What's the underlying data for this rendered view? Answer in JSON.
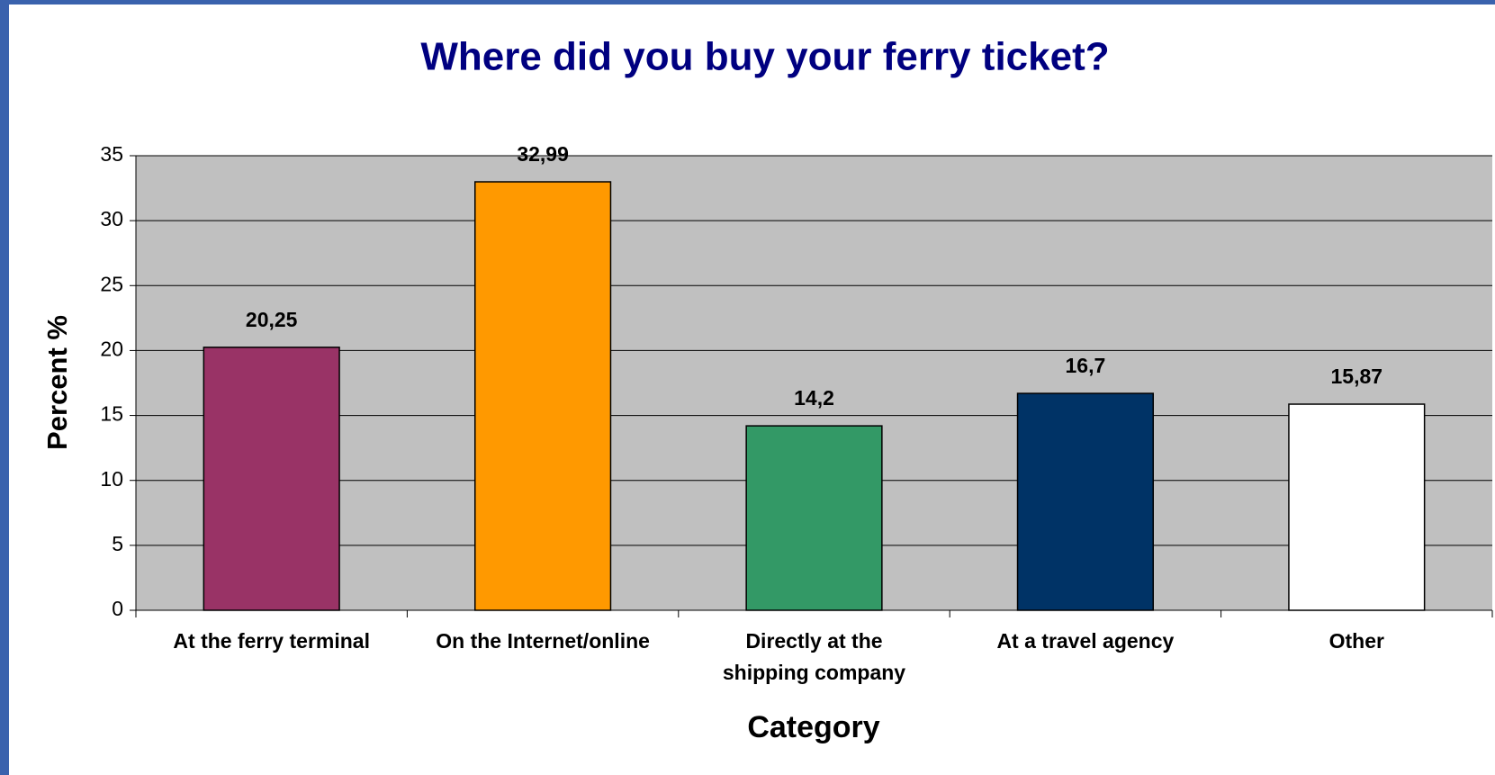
{
  "chart_data": {
    "type": "bar",
    "title": "Where did you buy your ferry ticket?",
    "x_label": "Category",
    "y_label": "Percent %",
    "categories": [
      "At the ferry terminal",
      "On the Internet/online",
      "Directly at the shipping company",
      "At a travel agency",
      "Other"
    ],
    "values": [
      20.25,
      32.99,
      14.2,
      16.7,
      15.87
    ],
    "value_labels": [
      "20,25",
      "32,99",
      "14,2",
      "16,7",
      "15,87"
    ],
    "colors": [
      "#993366",
      "#FF9900",
      "#339966",
      "#003366",
      "#FFFFFF"
    ],
    "ylim": [
      0,
      35
    ],
    "yticks": [
      0,
      5,
      10,
      15,
      20,
      25,
      30,
      35
    ],
    "grid": true
  }
}
